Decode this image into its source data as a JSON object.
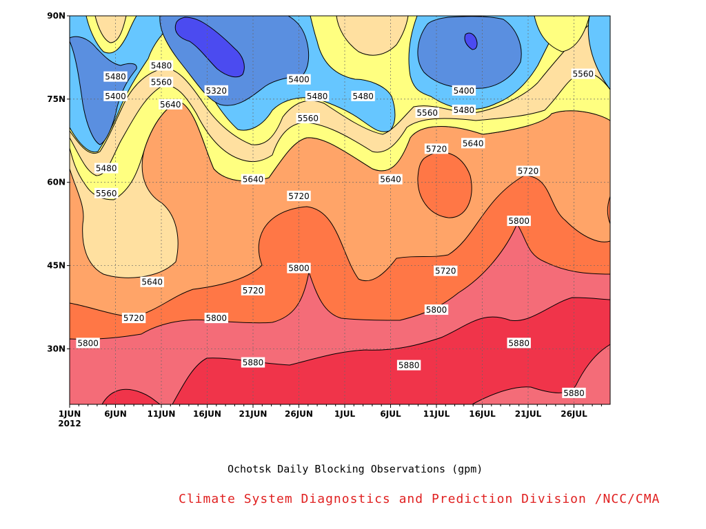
{
  "chart_data": {
    "type": "contour",
    "title": "Ochotsk Daily Blocking Observations (gpm)",
    "credit": "Climate System Diagnostics and Prediction Division /NCC/CMA",
    "x_ticks": [
      "1JUN",
      "6JUN",
      "11JUN",
      "16JUN",
      "21JUN",
      "26JUN",
      "1JUL",
      "6JUL",
      "11JUL",
      "16JUL",
      "21JUL",
      "26JUL"
    ],
    "x_year": "2012",
    "x_range": [
      "2012-06-01",
      "2012-07-30"
    ],
    "y_ticks": [
      "90N",
      "75N",
      "60N",
      "45N",
      "30N"
    ],
    "y_tick_values": [
      90,
      75,
      60,
      45,
      30
    ],
    "y_range": [
      20,
      90
    ],
    "grid": true,
    "levels": [
      5320,
      5400,
      5480,
      5560,
      5640,
      5720,
      5800,
      5880
    ],
    "level_colors": {
      "below_5320": "#4b4bf0",
      "5320_5400": "#5a8fe0",
      "5400_5480": "#66c6ff",
      "5480_5560": "#ffff80",
      "5560_5640": "#ffe0a0",
      "5640_5720": "#ffa468",
      "5720_5800": "#ff7746",
      "5800_5880": "#f46c78",
      "above_5880": "#f0344a"
    },
    "contour_labels": [
      {
        "value": "5480",
        "date": "2012-06-06",
        "lat": 79
      },
      {
        "value": "5400",
        "date": "2012-06-06",
        "lat": 75.5
      },
      {
        "value": "5480",
        "date": "2012-06-11",
        "lat": 81
      },
      {
        "value": "5560",
        "date": "2012-06-11",
        "lat": 78
      },
      {
        "value": "5640",
        "date": "2012-06-12",
        "lat": 74
      },
      {
        "value": "5320",
        "date": "2012-06-17",
        "lat": 76.5
      },
      {
        "value": "5400",
        "date": "2012-06-26",
        "lat": 78.5
      },
      {
        "value": "5480",
        "date": "2012-06-28",
        "lat": 75.5
      },
      {
        "value": "5480",
        "date": "2012-07-03",
        "lat": 75.5
      },
      {
        "value": "5560",
        "date": "2012-06-27",
        "lat": 71.5
      },
      {
        "value": "5560",
        "date": "2012-07-10",
        "lat": 72.5
      },
      {
        "value": "5400",
        "date": "2012-07-14",
        "lat": 76.5
      },
      {
        "value": "5480",
        "date": "2012-07-14",
        "lat": 73
      },
      {
        "value": "5560",
        "date": "2012-07-27",
        "lat": 79.5
      },
      {
        "value": "5480",
        "date": "2012-06-05",
        "lat": 62.5
      },
      {
        "value": "5560",
        "date": "2012-06-05",
        "lat": 58
      },
      {
        "value": "5720",
        "date": "2012-07-11",
        "lat": 66
      },
      {
        "value": "5640",
        "date": "2012-07-15",
        "lat": 67
      },
      {
        "value": "5640",
        "date": "2012-06-21",
        "lat": 60.5
      },
      {
        "value": "5640",
        "date": "2012-07-06",
        "lat": 60.5
      },
      {
        "value": "5720",
        "date": "2012-06-26",
        "lat": 57.5
      },
      {
        "value": "5720",
        "date": "2012-07-21",
        "lat": 62
      },
      {
        "value": "5800",
        "date": "2012-07-20",
        "lat": 53
      },
      {
        "value": "5800",
        "date": "2012-06-26",
        "lat": 44.5
      },
      {
        "value": "5640",
        "date": "2012-06-10",
        "lat": 42
      },
      {
        "value": "5720",
        "date": "2012-06-21",
        "lat": 40.5
      },
      {
        "value": "5720",
        "date": "2012-07-12",
        "lat": 44
      },
      {
        "value": "5800",
        "date": "2012-07-11",
        "lat": 37
      },
      {
        "value": "5720",
        "date": "2012-06-08",
        "lat": 35.5
      },
      {
        "value": "5800",
        "date": "2012-06-17",
        "lat": 35.5
      },
      {
        "value": "5800",
        "date": "2012-06-03",
        "lat": 31
      },
      {
        "value": "5880",
        "date": "2012-06-21",
        "lat": 27.5
      },
      {
        "value": "5880",
        "date": "2012-07-08",
        "lat": 27
      },
      {
        "value": "5880",
        "date": "2012-07-20",
        "lat": 31
      },
      {
        "value": "5880",
        "date": "2012-07-26",
        "lat": 22
      }
    ]
  }
}
